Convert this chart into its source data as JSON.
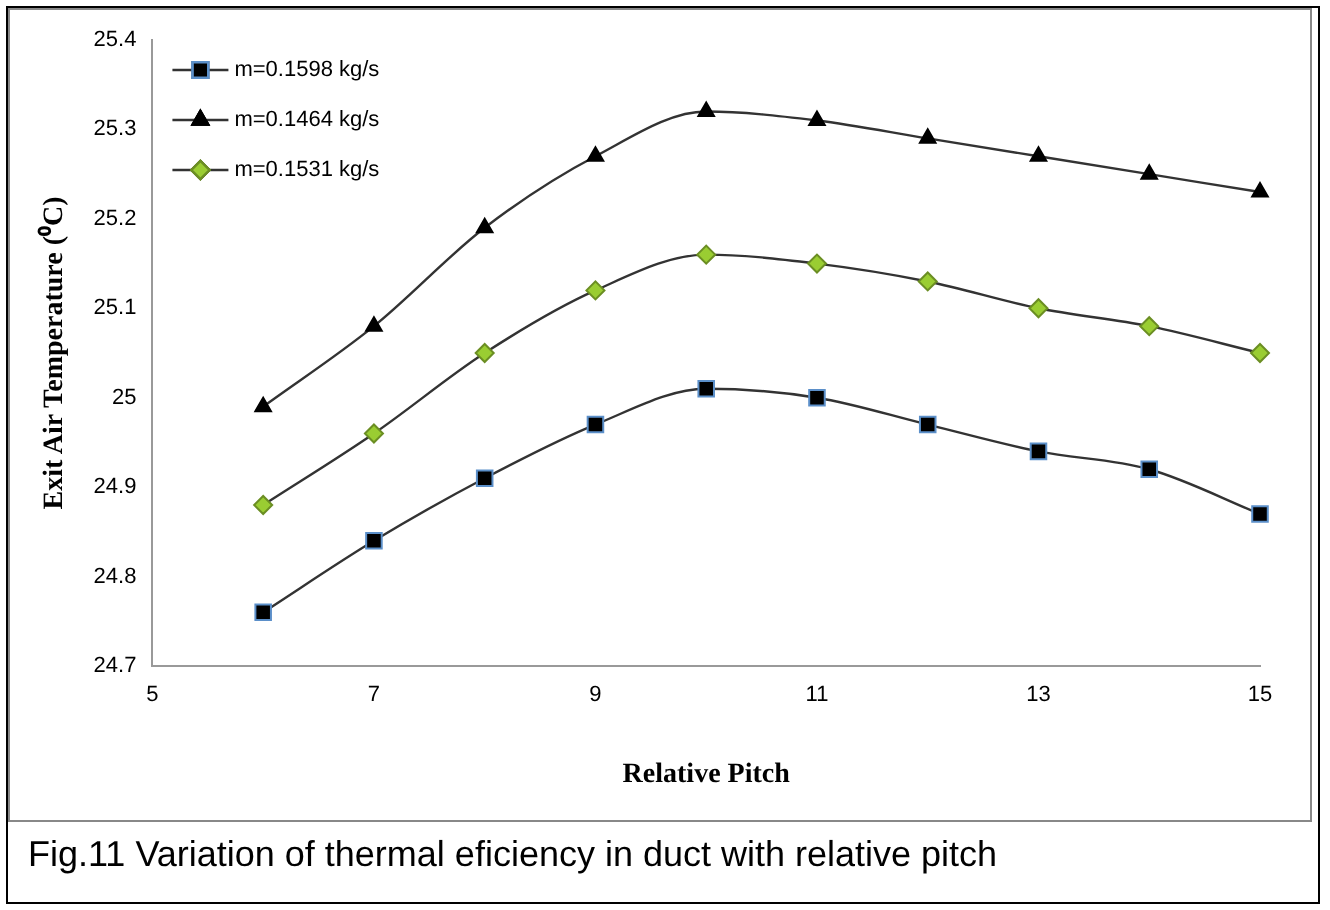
{
  "chart_data": {
    "type": "line",
    "xlabel": "Relative Pitch",
    "ylabel": "Exit Air Temperature (⁰C)",
    "x": [
      6,
      7,
      8,
      9,
      10,
      11,
      12,
      13,
      14,
      15
    ],
    "series": [
      {
        "name": "m=0.1598 kg/s",
        "color": "#000000",
        "marker": "square",
        "values": [
          24.76,
          24.84,
          24.91,
          24.97,
          25.01,
          25.0,
          24.97,
          24.94,
          24.92,
          24.87
        ]
      },
      {
        "name": "m=0.1464 kg/s",
        "color": "#000000",
        "marker": "triangle",
        "values": [
          24.99,
          25.08,
          25.19,
          25.27,
          25.32,
          25.31,
          25.29,
          25.27,
          25.25,
          25.23
        ]
      },
      {
        "name": "m=0.1531 kg/s",
        "color": "#9acd32",
        "marker": "diamond",
        "values": [
          24.88,
          24.96,
          25.05,
          25.12,
          25.16,
          25.15,
          25.13,
          25.1,
          25.08,
          25.05
        ]
      }
    ],
    "xlim": [
      5,
      15
    ],
    "xticks": [
      5,
      7,
      9,
      11,
      13,
      15
    ],
    "ylim": [
      24.7,
      25.4
    ],
    "yticks": [
      24.7,
      24.8,
      24.9,
      25,
      25.1,
      25.2,
      25.3,
      25.4
    ],
    "grid": false,
    "legend": "top left",
    "line_style": "solid",
    "annotations": [
      "Fig.11 Variation of thermal eficiency in duct with relative pitch"
    ]
  }
}
